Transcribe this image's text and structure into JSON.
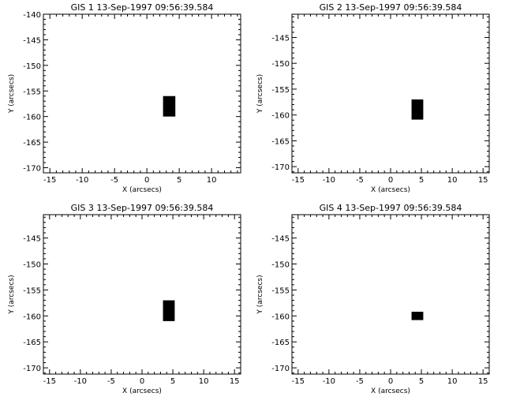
{
  "chart_data": [
    {
      "type": "image",
      "title": "GIS 1 13-Sep-1997 09:56:39.584",
      "xlabel": "X (arcsecs)",
      "ylabel": "Y (arcsecs)",
      "xlim": [
        -16.0,
        14.5
      ],
      "ylim": [
        -171.0,
        -140.0
      ],
      "xticks": [
        -15,
        -10,
        -5,
        0,
        5,
        10
      ],
      "yticks": [
        -170,
        -165,
        -160,
        -155,
        -150,
        -145,
        -140
      ],
      "rect": {
        "x0": 2.5,
        "x1": 4.4,
        "y0": -160.0,
        "y1": -156.0
      }
    },
    {
      "type": "image",
      "title": "GIS 2 13-Sep-1997 09:56:39.584",
      "xlabel": "X (arcsecs)",
      "ylabel": "Y (arcsecs)",
      "xlim": [
        -16.0,
        16.0
      ],
      "ylim": [
        -171.2,
        -140.5
      ],
      "xticks": [
        -15,
        -10,
        -5,
        0,
        5,
        10,
        15
      ],
      "yticks": [
        -170,
        -165,
        -160,
        -155,
        -150,
        -145
      ],
      "rect": {
        "x0": 3.4,
        "x1": 5.3,
        "y0": -160.9,
        "y1": -157.0
      }
    },
    {
      "type": "image",
      "title": "GIS 3 13-Sep-1997 09:56:39.584",
      "xlabel": "X (arcsecs)",
      "ylabel": "Y (arcsecs)",
      "xlim": [
        -16.0,
        16.0
      ],
      "ylim": [
        -171.2,
        -140.5
      ],
      "xticks": [
        -15,
        -10,
        -5,
        0,
        5,
        10,
        15
      ],
      "yticks": [
        -170,
        -165,
        -160,
        -155,
        -150,
        -145
      ],
      "rect": {
        "x0": 3.4,
        "x1": 5.3,
        "y0": -161.0,
        "y1": -157.0
      }
    },
    {
      "type": "image",
      "title": "GIS 4 13-Sep-1997 09:56:39.584",
      "xlabel": "X (arcsecs)",
      "ylabel": "Y (arcsecs)",
      "xlim": [
        -16.0,
        16.0
      ],
      "ylim": [
        -171.2,
        -140.5
      ],
      "xticks": [
        -15,
        -10,
        -5,
        0,
        5,
        10,
        15
      ],
      "yticks": [
        -170,
        -165,
        -160,
        -155,
        -150,
        -145
      ],
      "rect": {
        "x0": 3.4,
        "x1": 5.3,
        "y0": -160.8,
        "y1": -159.2
      }
    }
  ]
}
